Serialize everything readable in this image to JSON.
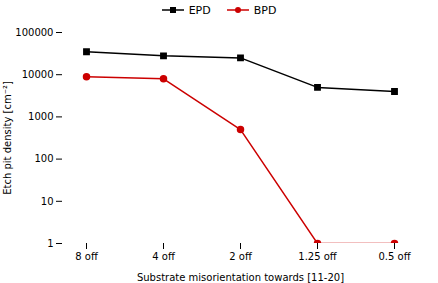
{
  "chart_data": {
    "type": "line",
    "categories": [
      "8 off",
      "4 off",
      "2 off",
      "1.25 off",
      "0.5 off"
    ],
    "series": [
      {
        "name": "EPD",
        "color": "#000000",
        "marker": "square",
        "values": [
          35000,
          28000,
          25000,
          5000,
          4000
        ]
      },
      {
        "name": "BPD",
        "color": "#cc0000",
        "marker": "circle",
        "values": [
          9000,
          8000,
          500,
          1,
          1
        ]
      }
    ],
    "xlabel": "Substrate misorientation towards [11-20]",
    "ylabel": "Etch pit density [cm⁻²]",
    "log": "y",
    "ylim": [
      1,
      100000
    ],
    "yticks": [
      1,
      10,
      100,
      1000,
      10000,
      100000
    ],
    "grid": false,
    "legend": "top"
  }
}
